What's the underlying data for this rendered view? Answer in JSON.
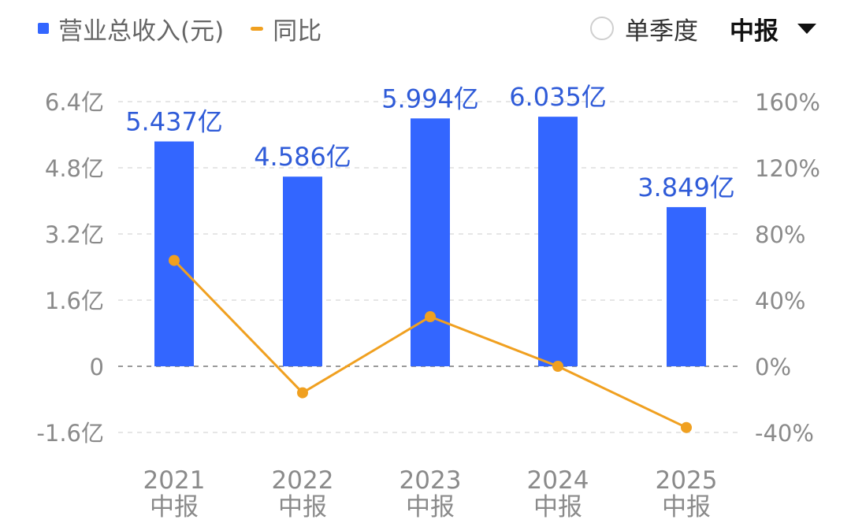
{
  "legend": {
    "bar_label": "营业总收入(元)",
    "line_label": "同比"
  },
  "controls": {
    "single_quarter_label": "单季度",
    "period_label": "中报"
  },
  "colors": {
    "bar": "#3366ff",
    "line": "#f0a020",
    "bar_label": "#2f5bd8",
    "axis_text": "#8a8a8a",
    "grid": "#e6e6e6",
    "zero_line": "#9a9a9a"
  },
  "chart_data": {
    "type": "bar",
    "categories": [
      [
        "2021",
        "中报"
      ],
      [
        "2022",
        "中报"
      ],
      [
        "2023",
        "中报"
      ],
      [
        "2024",
        "中报"
      ],
      [
        "2025",
        "中报"
      ]
    ],
    "series": [
      {
        "name": "营业总收入(元)",
        "type": "bar",
        "axis": "left",
        "values": [
          5.437,
          4.586,
          5.994,
          6.035,
          3.849
        ],
        "labels": [
          "5.437亿",
          "4.586亿",
          "5.994亿",
          "6.035亿",
          "3.849亿"
        ]
      },
      {
        "name": "同比",
        "type": "line",
        "axis": "right",
        "values": [
          64,
          -16,
          30,
          0,
          -37
        ]
      }
    ],
    "y_left": {
      "ylim": [
        -1.6,
        6.4
      ],
      "ticks": [
        6.4,
        4.8,
        3.2,
        1.6,
        0,
        -1.6
      ],
      "tick_labels": [
        "6.4亿",
        "4.8亿",
        "3.2亿",
        "1.6亿",
        "0",
        "-1.6亿"
      ]
    },
    "y_right": {
      "ylim": [
        -40,
        160
      ],
      "ticks": [
        160,
        120,
        80,
        40,
        0,
        -40
      ],
      "tick_labels": [
        "160%",
        "120%",
        "80%",
        "40%",
        "0%",
        "-40%"
      ]
    },
    "grid": true
  }
}
